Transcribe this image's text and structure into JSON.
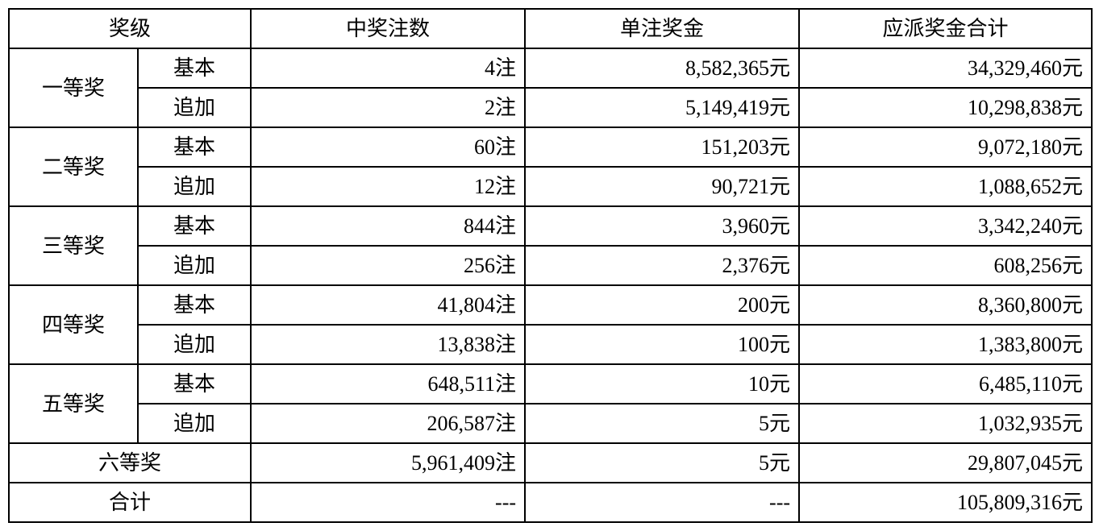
{
  "table": {
    "headers": {
      "level": "奖级",
      "count": "中奖注数",
      "unit": "单注奖金",
      "total": "应派奖金合计"
    },
    "rows": [
      {
        "level": "一等奖",
        "subtype": "基本",
        "count": "4注",
        "unit": "8,582,365元",
        "total": "34,329,460元"
      },
      {
        "level": "一等奖",
        "subtype": "追加",
        "count": "2注",
        "unit": "5,149,419元",
        "total": "10,298,838元"
      },
      {
        "level": "二等奖",
        "subtype": "基本",
        "count": "60注",
        "unit": "151,203元",
        "total": "9,072,180元"
      },
      {
        "level": "二等奖",
        "subtype": "追加",
        "count": "12注",
        "unit": "90,721元",
        "total": "1,088,652元"
      },
      {
        "level": "三等奖",
        "subtype": "基本",
        "count": "844注",
        "unit": "3,960元",
        "total": "3,342,240元"
      },
      {
        "level": "三等奖",
        "subtype": "追加",
        "count": "256注",
        "unit": "2,376元",
        "total": "608,256元"
      },
      {
        "level": "四等奖",
        "subtype": "基本",
        "count": "41,804注",
        "unit": "200元",
        "total": "8,360,800元"
      },
      {
        "level": "四等奖",
        "subtype": "追加",
        "count": "13,838注",
        "unit": "100元",
        "total": "1,383,800元"
      },
      {
        "level": "五等奖",
        "subtype": "基本",
        "count": "648,511注",
        "unit": "10元",
        "total": "6,485,110元"
      },
      {
        "level": "五等奖",
        "subtype": "追加",
        "count": "206,587注",
        "unit": "5元",
        "total": "1,032,935元"
      }
    ],
    "sixth": {
      "level": "六等奖",
      "count": "5,961,409注",
      "unit": "5元",
      "total": "29,807,045元"
    },
    "sum": {
      "level": "合计",
      "count": "---",
      "unit": "---",
      "total": "105,809,316元"
    }
  },
  "style": {
    "sum_count_align": "right",
    "sum_unit_align": "right"
  }
}
